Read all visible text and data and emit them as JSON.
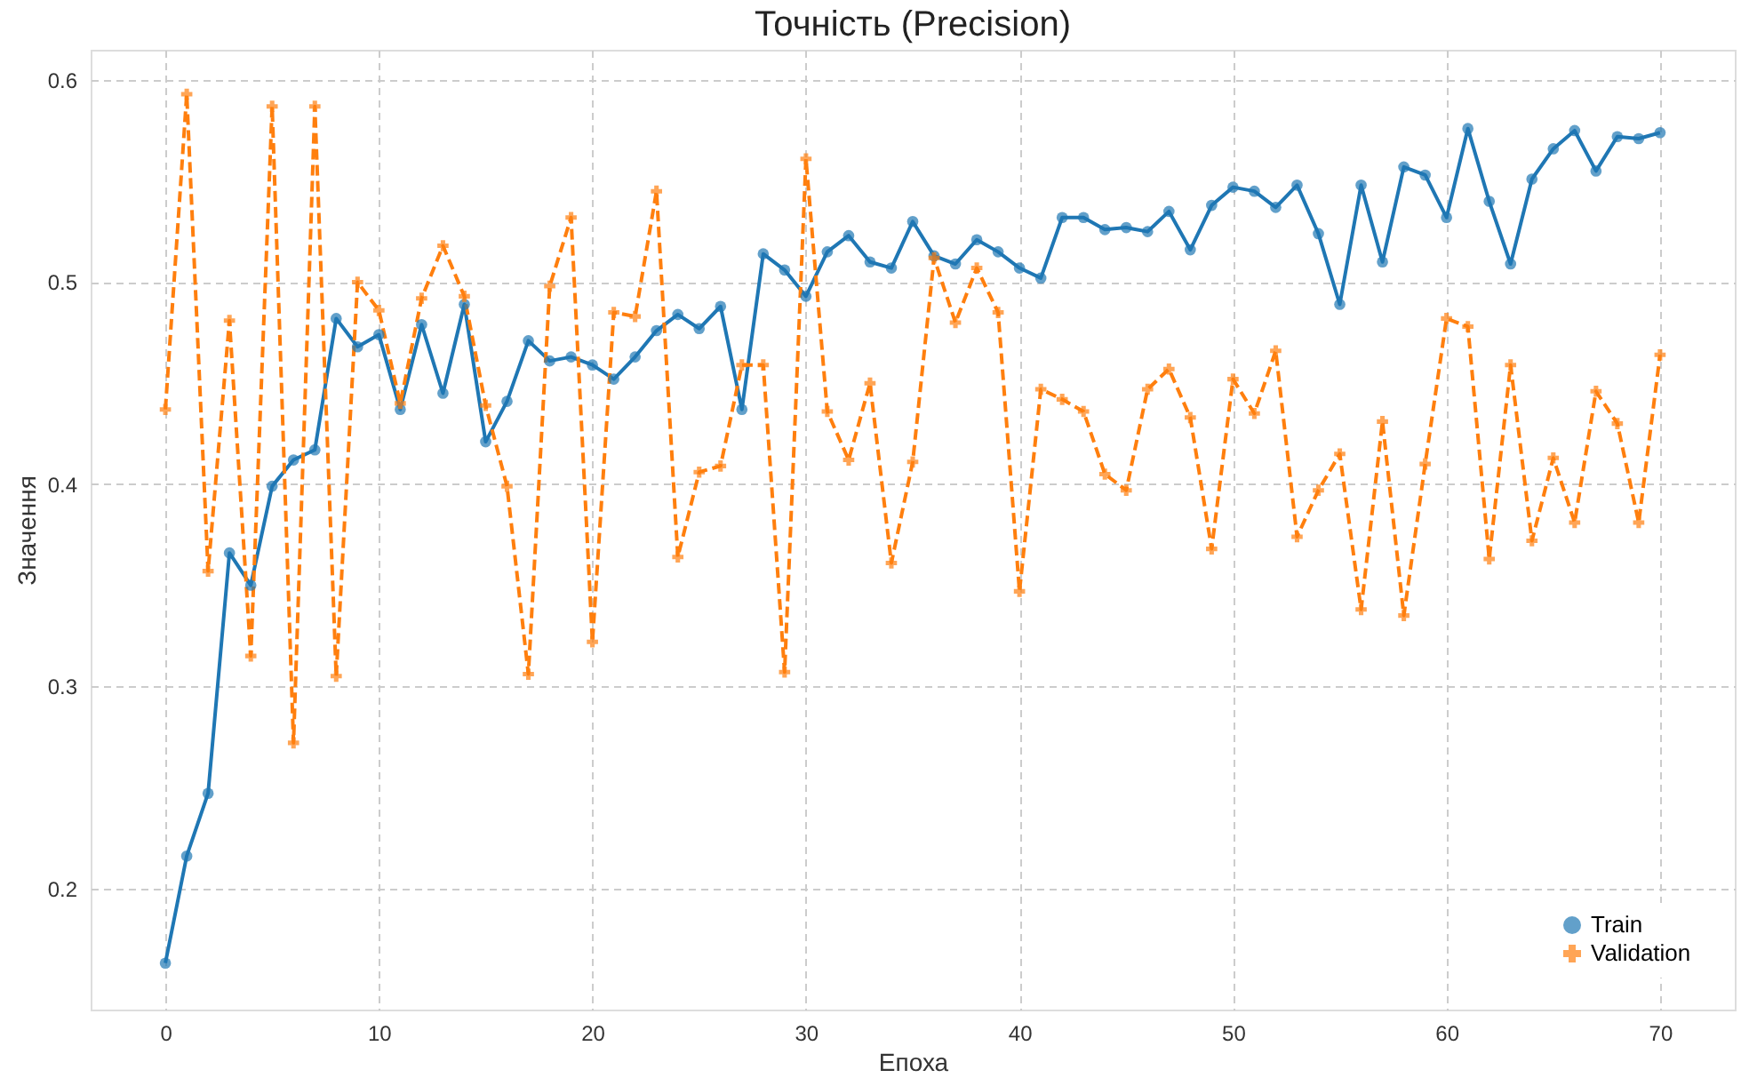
{
  "chart_data": {
    "type": "line",
    "title": "Точність (Precision)",
    "xlabel": "Епоха",
    "ylabel": "Значення",
    "x": [
      0,
      1,
      2,
      3,
      4,
      5,
      6,
      7,
      8,
      9,
      10,
      11,
      12,
      13,
      14,
      15,
      16,
      17,
      18,
      19,
      20,
      21,
      22,
      23,
      24,
      25,
      26,
      27,
      28,
      29,
      30,
      31,
      32,
      33,
      34,
      35,
      36,
      37,
      38,
      39,
      40,
      41,
      42,
      43,
      44,
      45,
      46,
      47,
      48,
      49,
      50,
      51,
      52,
      53,
      54,
      55,
      56,
      57,
      58,
      59,
      60,
      61,
      62,
      63,
      64,
      65,
      66,
      67,
      68,
      69,
      70
    ],
    "series": [
      {
        "name": "Train",
        "color": "#1f77b4",
        "marker": "circle",
        "line_style": "solid",
        "values": [
          0.163,
          0.216,
          0.247,
          0.366,
          0.35,
          0.399,
          0.412,
          0.417,
          0.482,
          0.468,
          0.474,
          0.437,
          0.479,
          0.445,
          0.489,
          0.421,
          0.441,
          0.471,
          0.461,
          0.463,
          0.459,
          0.452,
          0.463,
          0.476,
          0.484,
          0.477,
          0.488,
          0.437,
          0.514,
          0.506,
          0.493,
          0.515,
          0.523,
          0.51,
          0.507,
          0.53,
          0.513,
          0.509,
          0.521,
          0.515,
          0.507,
          0.502,
          0.532,
          0.532,
          0.526,
          0.527,
          0.525,
          0.535,
          0.516,
          0.538,
          0.547,
          0.545,
          0.537,
          0.548,
          0.524,
          0.489,
          0.548,
          0.51,
          0.557,
          0.553,
          0.532,
          0.576,
          0.54,
          0.509,
          0.551,
          0.566,
          0.575,
          0.555,
          0.572,
          0.571,
          0.574
        ]
      },
      {
        "name": "Validation",
        "color": "#ff7f0e",
        "marker": "cross",
        "line_style": "dashed",
        "values": [
          0.437,
          0.593,
          0.357,
          0.481,
          0.315,
          0.587,
          0.272,
          0.587,
          0.305,
          0.5,
          0.486,
          0.44,
          0.492,
          0.518,
          0.493,
          0.439,
          0.399,
          0.306,
          0.498,
          0.532,
          0.322,
          0.485,
          0.483,
          0.545,
          0.364,
          0.406,
          0.409,
          0.459,
          0.459,
          0.307,
          0.561,
          0.436,
          0.412,
          0.45,
          0.361,
          0.411,
          0.512,
          0.48,
          0.507,
          0.485,
          0.347,
          0.447,
          0.442,
          0.436,
          0.405,
          0.397,
          0.447,
          0.457,
          0.433,
          0.368,
          0.452,
          0.435,
          0.466,
          0.374,
          0.397,
          0.415,
          0.338,
          0.431,
          0.335,
          0.41,
          0.482,
          0.478,
          0.363,
          0.459,
          0.372,
          0.413,
          0.381,
          0.446,
          0.43,
          0.381,
          0.464
        ]
      }
    ],
    "xlim": [
      -3.5,
      73.5
    ],
    "xticks": [
      0,
      10,
      20,
      30,
      40,
      50,
      60,
      70
    ],
    "ylim": [
      0.14,
      0.615
    ],
    "yticks": [
      0.2,
      0.3,
      0.4,
      0.5,
      0.6
    ],
    "grid": true,
    "legend": "bottom right"
  }
}
